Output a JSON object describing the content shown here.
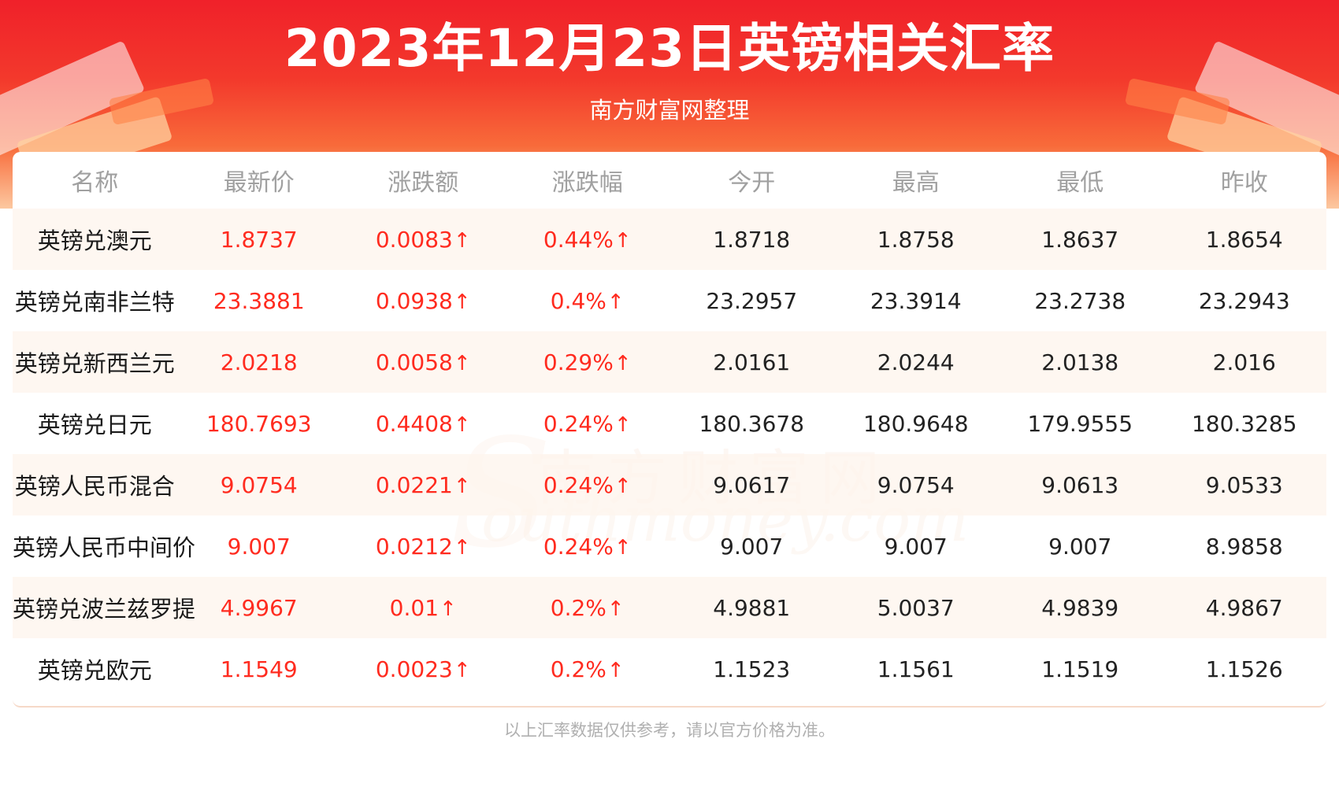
{
  "header": {
    "title": "2023年12月23日英镑相关汇率",
    "subtitle": "南方财富网整理"
  },
  "watermark": {
    "cn": "南方财富网",
    "en": "outhmoney.com",
    "s": "S"
  },
  "table": {
    "columns": [
      "名称",
      "最新价",
      "涨跌额",
      "涨跌幅",
      "今开",
      "最高",
      "最低",
      "昨收"
    ],
    "rows": [
      {
        "name": "英镑兑澳元",
        "latest": "1.8737",
        "change": "0.0083",
        "change_pct": "0.44%",
        "open": "1.8718",
        "high": "1.8758",
        "low": "1.8637",
        "prev_close": "1.8654"
      },
      {
        "name": "英镑兑南非兰特",
        "latest": "23.3881",
        "change": "0.0938",
        "change_pct": "0.4%",
        "open": "23.2957",
        "high": "23.3914",
        "low": "23.2738",
        "prev_close": "23.2943"
      },
      {
        "name": "英镑兑新西兰元",
        "latest": "2.0218",
        "change": "0.0058",
        "change_pct": "0.29%",
        "open": "2.0161",
        "high": "2.0244",
        "low": "2.0138",
        "prev_close": "2.016"
      },
      {
        "name": "英镑兑日元",
        "latest": "180.7693",
        "change": "0.4408",
        "change_pct": "0.24%",
        "open": "180.3678",
        "high": "180.9648",
        "low": "179.9555",
        "prev_close": "180.3285"
      },
      {
        "name": "英镑人民币混合",
        "latest": "9.0754",
        "change": "0.0221",
        "change_pct": "0.24%",
        "open": "9.0617",
        "high": "9.0754",
        "low": "9.0613",
        "prev_close": "9.0533"
      },
      {
        "name": "英镑人民币中间价",
        "latest": "9.007",
        "change": "0.0212",
        "change_pct": "0.24%",
        "open": "9.007",
        "high": "9.007",
        "low": "9.007",
        "prev_close": "8.9858"
      },
      {
        "name": "英镑兑波兰兹罗提",
        "latest": "4.9967",
        "change": "0.01",
        "change_pct": "0.2%",
        "open": "4.9881",
        "high": "5.0037",
        "low": "4.9839",
        "prev_close": "4.9867"
      },
      {
        "name": "英镑兑欧元",
        "latest": "1.1549",
        "change": "0.0023",
        "change_pct": "0.2%",
        "open": "1.1523",
        "high": "1.1561",
        "low": "1.1519",
        "prev_close": "1.1526"
      }
    ],
    "up_arrow": "↑"
  },
  "footer": {
    "note": "以上汇率数据仅供参考，请以官方价格为准。"
  },
  "colors": {
    "header_red": "#f0212a",
    "rise_red": "#ff2b1f",
    "row_tint": "#fef6ef",
    "header_text_gray": "#a0a0a0"
  }
}
